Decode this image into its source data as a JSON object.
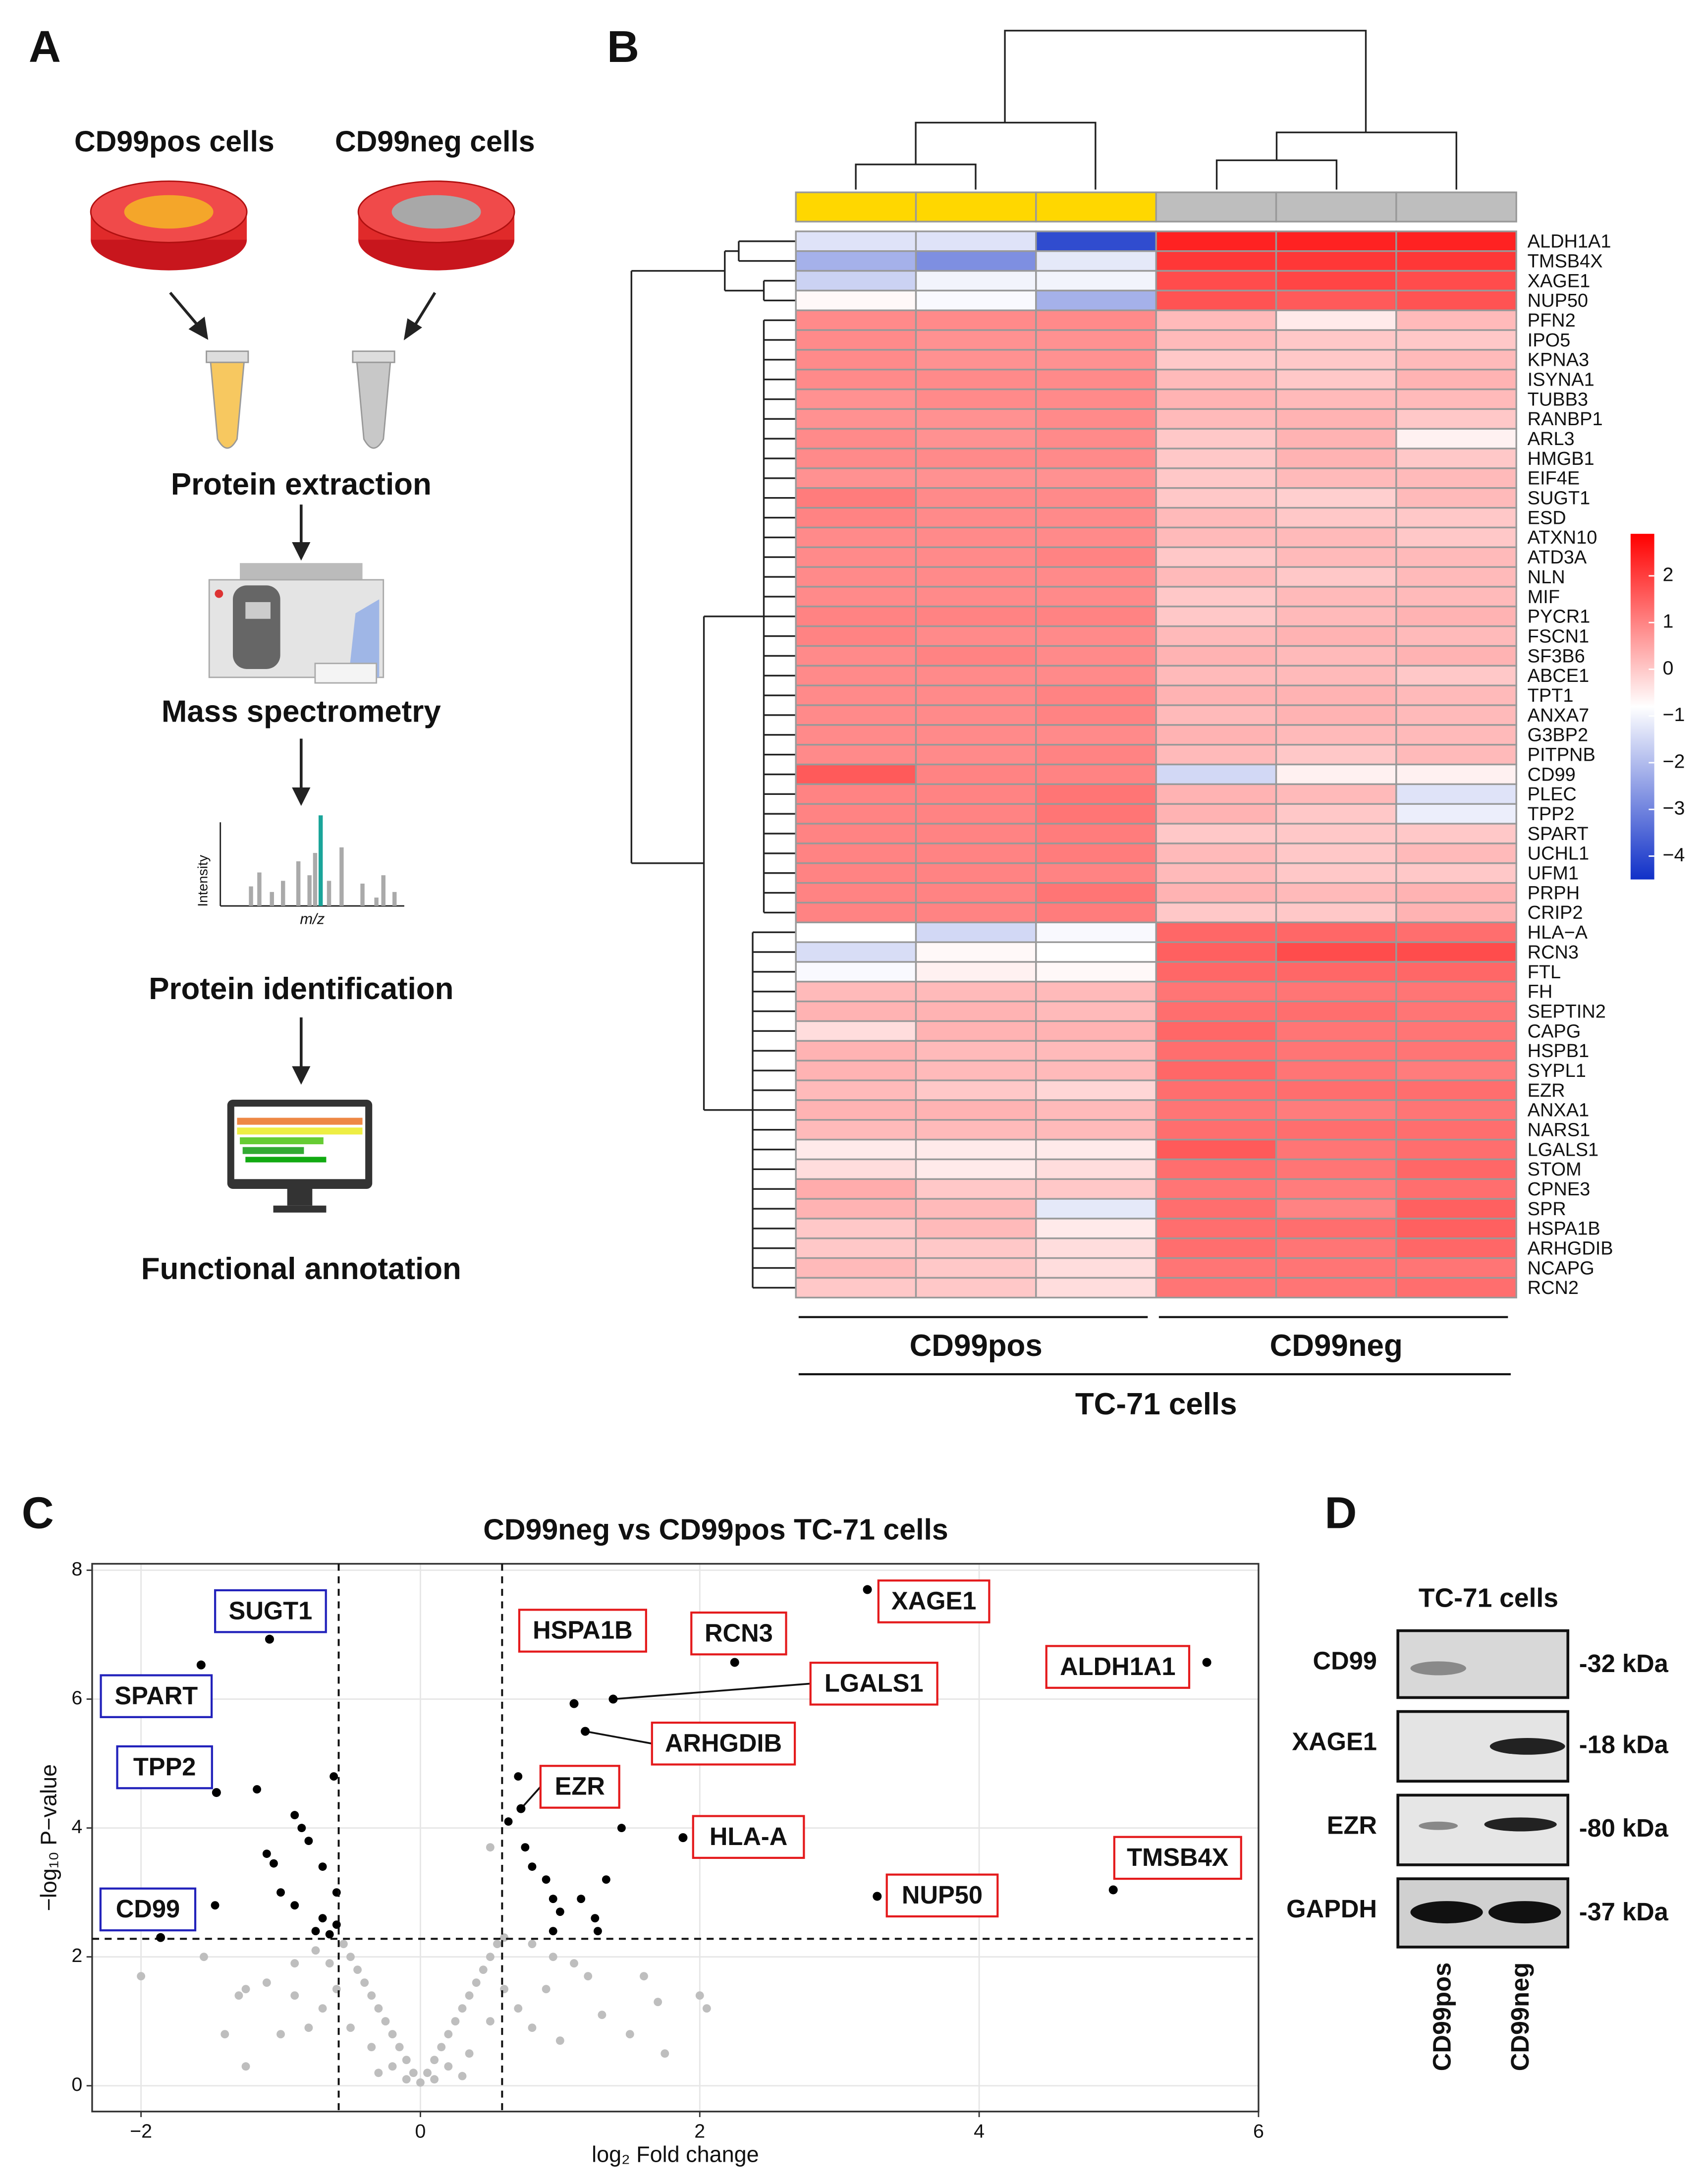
{
  "panel_labels": [
    "A",
    "B",
    "C",
    "D"
  ],
  "workflow": {
    "cells": [
      "CD99pos cells",
      "CD99neg cells"
    ],
    "steps": [
      "Protein extraction",
      "Mass spectrometry",
      "Protein identification",
      "Functional annotation"
    ],
    "spectrum_axes": {
      "y": "Intensity",
      "x": "m/z"
    }
  },
  "chart_data": [
    {
      "type": "heatmap",
      "groups": [
        {
          "name": "CD99pos",
          "color": "#FFD700"
        },
        {
          "name": "CD99neg",
          "color": "#BEBEBE"
        }
      ],
      "xlabel": "TC-71 cells",
      "zlim": [
        -4.5,
        2.9
      ],
      "zticks": [
        2,
        1,
        0,
        {
          "value": -1,
          "label": "−1"
        },
        {
          "value": -2,
          "label": "−2"
        },
        {
          "value": -3,
          "label": "−3"
        },
        {
          "value": -4,
          "label": "−4"
        }
      ],
      "colors": [
        "#1030C8",
        "#FFFFFF",
        "#FF0000"
      ],
      "rows": [
        {
          "name": "ALDH1A1",
          "values": [
            -1.3,
            -1.3,
            -4.0,
            2.4,
            2.4,
            2.4
          ]
        },
        {
          "name": "TMSB4X",
          "values": [
            -2.2,
            -2.8,
            -1.2,
            2.1,
            2.1,
            2.1
          ]
        },
        {
          "name": "XAGE1",
          "values": [
            -1.6,
            -1.0,
            -1.0,
            1.8,
            1.9,
            1.8
          ]
        },
        {
          "name": "NUP50",
          "values": [
            -0.7,
            -0.9,
            -2.2,
            1.7,
            1.6,
            1.7
          ]
        },
        {
          "name": "PFN2",
          "values": [
            0.9,
            0.9,
            0.9,
            0.2,
            -0.5,
            0.2
          ]
        },
        {
          "name": "IPO5",
          "values": [
            0.9,
            0.8,
            0.8,
            0.2,
            0.0,
            0.0
          ]
        },
        {
          "name": "KPNA3",
          "values": [
            0.9,
            0.8,
            0.8,
            0.0,
            0.0,
            0.2
          ]
        },
        {
          "name": "ISYNA1",
          "values": [
            0.9,
            0.9,
            0.9,
            0.2,
            0.0,
            0.3
          ]
        },
        {
          "name": "TUBB3",
          "values": [
            0.8,
            0.9,
            0.9,
            0.3,
            0.2,
            0.2
          ]
        },
        {
          "name": "RANBP1",
          "values": [
            0.8,
            0.8,
            0.9,
            0.2,
            0.3,
            0.0
          ]
        },
        {
          "name": "ARL3",
          "values": [
            0.9,
            0.8,
            0.9,
            0.0,
            0.3,
            -0.6
          ]
        },
        {
          "name": "HMGB1",
          "values": [
            0.9,
            0.9,
            0.9,
            0.0,
            0.3,
            0.0
          ]
        },
        {
          "name": "EIF4E",
          "values": [
            0.8,
            0.8,
            0.8,
            0.0,
            0.2,
            0.2
          ]
        },
        {
          "name": "SUGT1",
          "values": [
            1.1,
            0.9,
            0.9,
            0.0,
            -0.1,
            0.2
          ]
        },
        {
          "name": "ESD",
          "values": [
            1.0,
            0.9,
            0.9,
            0.2,
            0.0,
            0.0
          ]
        },
        {
          "name": "ATXN10",
          "values": [
            0.9,
            0.9,
            0.9,
            0.2,
            0.2,
            0.0
          ]
        },
        {
          "name": "ATD3A",
          "values": [
            0.9,
            0.9,
            1.0,
            0.0,
            0.2,
            0.2
          ]
        },
        {
          "name": "NLN",
          "values": [
            0.9,
            0.9,
            0.9,
            0.2,
            0.0,
            0.2
          ]
        },
        {
          "name": "MIF",
          "values": [
            0.9,
            0.9,
            0.9,
            0.0,
            0.2,
            0.2
          ]
        },
        {
          "name": "PYCR1",
          "values": [
            1.0,
            1.0,
            1.0,
            0.0,
            0.2,
            0.3
          ]
        },
        {
          "name": "FSCN1",
          "values": [
            1.0,
            0.9,
            0.9,
            0.2,
            0.3,
            0.2
          ]
        },
        {
          "name": "SF3B6",
          "values": [
            0.9,
            1.0,
            0.9,
            0.3,
            0.2,
            0.3
          ]
        },
        {
          "name": "ABCE1",
          "values": [
            0.9,
            0.9,
            0.9,
            0.2,
            0.2,
            0.0
          ]
        },
        {
          "name": "TPT1",
          "values": [
            0.9,
            0.9,
            1.0,
            0.3,
            0.3,
            0.2
          ]
        },
        {
          "name": "ANXA7",
          "values": [
            0.9,
            0.9,
            1.0,
            0.2,
            0.3,
            0.2
          ]
        },
        {
          "name": "G3BP2",
          "values": [
            0.9,
            0.9,
            0.9,
            0.3,
            0.2,
            0.2
          ]
        },
        {
          "name": "PITPNB",
          "values": [
            0.9,
            0.9,
            1.0,
            0.2,
            0.0,
            0.2
          ]
        },
        {
          "name": "CD99",
          "values": [
            1.6,
            1.0,
            1.0,
            -1.5,
            -0.6,
            -0.6
          ]
        },
        {
          "name": "PLEC",
          "values": [
            1.0,
            1.0,
            1.2,
            0.3,
            0.2,
            -1.3
          ]
        },
        {
          "name": "TPP2",
          "values": [
            1.0,
            1.0,
            1.2,
            0.3,
            0.0,
            -1.1
          ]
        },
        {
          "name": "SPART",
          "values": [
            1.0,
            1.0,
            1.1,
            0.0,
            0.0,
            0.0
          ]
        },
        {
          "name": "UCHL1",
          "values": [
            1.0,
            1.0,
            1.1,
            0.2,
            0.0,
            0.2
          ]
        },
        {
          "name": "UFM1",
          "values": [
            1.0,
            1.0,
            1.0,
            0.2,
            0.0,
            0.0
          ]
        },
        {
          "name": "PRPH",
          "values": [
            1.0,
            1.0,
            1.2,
            0.3,
            0.2,
            0.3
          ]
        },
        {
          "name": "CRIP2",
          "values": [
            1.0,
            1.0,
            1.1,
            0.0,
            0.0,
            0.3
          ]
        },
        {
          "name": "HLA−A",
          "values": [
            -0.8,
            -1.5,
            -0.9,
            1.4,
            1.4,
            1.3
          ]
        },
        {
          "name": "RCN3",
          "values": [
            -1.4,
            -0.7,
            -0.8,
            1.5,
            1.8,
            1.8
          ]
        },
        {
          "name": "FTL",
          "values": [
            -0.9,
            -0.6,
            -0.7,
            1.4,
            1.4,
            1.4
          ]
        },
        {
          "name": "FH",
          "values": [
            0.2,
            0.2,
            0.2,
            1.2,
            1.2,
            1.2
          ]
        },
        {
          "name": "SEPTIN2",
          "values": [
            0.3,
            0.3,
            0.2,
            1.3,
            1.3,
            1.2
          ]
        },
        {
          "name": "CAPG",
          "values": [
            -0.3,
            0.3,
            0.3,
            1.4,
            1.2,
            1.2
          ]
        },
        {
          "name": "HSPB1",
          "values": [
            0.3,
            0.2,
            0.2,
            1.3,
            1.2,
            1.2
          ]
        },
        {
          "name": "SYPL1",
          "values": [
            0.3,
            0.2,
            0.2,
            1.4,
            1.2,
            1.1
          ]
        },
        {
          "name": "EZR",
          "values": [
            0.2,
            0.0,
            -0.2,
            1.3,
            1.3,
            1.3
          ]
        },
        {
          "name": "ANXA1",
          "values": [
            0.3,
            0.3,
            0.2,
            1.2,
            1.1,
            1.2
          ]
        },
        {
          "name": "NARS1",
          "values": [
            0.2,
            0.2,
            0.2,
            1.3,
            1.3,
            1.3
          ]
        },
        {
          "name": "LGALS1",
          "values": [
            -0.5,
            -0.5,
            -0.5,
            1.6,
            1.2,
            1.3
          ]
        },
        {
          "name": "STOM",
          "values": [
            -0.3,
            -0.5,
            -0.3,
            1.3,
            1.2,
            1.4
          ]
        },
        {
          "name": "CPNE3",
          "values": [
            0.4,
            0.0,
            0.0,
            1.2,
            1.1,
            1.3
          ]
        },
        {
          "name": "SPR",
          "values": [
            0.3,
            0.2,
            -1.2,
            1.3,
            1.0,
            1.5
          ]
        },
        {
          "name": "HSPA1B",
          "values": [
            0.0,
            0.2,
            -0.5,
            1.3,
            1.3,
            1.5
          ]
        },
        {
          "name": "ARHGDIB",
          "values": [
            0.0,
            0.0,
            -0.3,
            1.3,
            1.2,
            1.4
          ]
        },
        {
          "name": "NCAPG",
          "values": [
            0.2,
            0.0,
            -0.3,
            1.2,
            1.2,
            1.2
          ]
        },
        {
          "name": "RCN2",
          "values": [
            0.0,
            0.0,
            -0.3,
            1.2,
            1.2,
            1.3
          ]
        }
      ]
    },
    {
      "type": "scatter",
      "title": "CD99neg vs CD99pos TC-71 cells",
      "x_label": "log₂ Fold change",
      "y_label": "−log₁₀ P−value",
      "xlim": [
        -2.35,
        6.0
      ],
      "ylim": [
        -0.4,
        8.1
      ],
      "xticks": [
        {
          "value": -2,
          "label": "−2"
        },
        0,
        2,
        4,
        6
      ],
      "yticks": [
        0,
        2,
        4,
        6,
        8
      ],
      "grid": true,
      "thresholds": {
        "x": [
          -0.585,
          0.585
        ],
        "y": 2.28
      },
      "series": [
        {
          "color": "#BEBEBE",
          "x": [
            0,
            0.05,
            -0.05,
            0.1,
            -0.1,
            0.15,
            -0.15,
            0.2,
            -0.2,
            0.25,
            -0.25,
            0.3,
            -0.3,
            0.35,
            -0.35,
            0.4,
            -0.4,
            0.45,
            -0.45,
            0.5,
            -0.5,
            0.55,
            -0.55,
            0.6,
            -0.6,
            0.7,
            -0.7,
            0.8,
            -0.8,
            0.9,
            -0.9,
            1.0,
            -1.0,
            1.1,
            -1.1,
            1.3,
            -1.3,
            1.5,
            -1.4,
            1.7,
            1.6,
            -1.55,
            -1.25,
            2.05,
            2.0,
            1.75,
            -1.25,
            -2.0,
            0.2,
            -0.2,
            0.35,
            -0.35,
            0.5,
            -0.5,
            0.6,
            0.5,
            0.95,
            -0.75,
            -0.65,
            0.3,
            -0.3,
            0.8,
            1.2,
            -0.9,
            0.1,
            -0.1
          ],
          "y": [
            0.05,
            0.2,
            0.2,
            0.4,
            0.4,
            0.6,
            0.6,
            0.8,
            0.8,
            1.0,
            1.0,
            1.2,
            1.2,
            1.4,
            1.4,
            1.6,
            1.6,
            1.8,
            1.8,
            2.0,
            2.0,
            2.2,
            2.2,
            1.5,
            1.5,
            1.2,
            1.2,
            0.9,
            0.9,
            1.5,
            1.4,
            0.7,
            0.8,
            1.9,
            1.6,
            1.1,
            1.4,
            0.8,
            0.8,
            1.3,
            1.7,
            2.0,
            1.5,
            1.2,
            1.4,
            0.5,
            0.3,
            1.7,
            0.3,
            0.3,
            0.5,
            0.6,
            1.0,
            0.9,
            2.3,
            3.7,
            2.0,
            2.1,
            1.9,
            0.15,
            0.2,
            2.2,
            1.7,
            1.9,
            0.1,
            0.1
          ]
        },
        {
          "color": "#000000",
          "x": [
            -0.62,
            -1.17,
            -0.9,
            -0.85,
            -0.8,
            -1.1,
            -1.05,
            -0.7,
            -1.0,
            -0.6,
            -0.9,
            -0.7,
            -0.75,
            -0.65,
            -1.47,
            -0.6,
            0.7,
            0.63,
            0.75,
            0.8,
            0.9,
            0.95,
            1.0,
            1.15,
            1.25,
            1.44,
            1.33,
            1.27,
            0.95
          ],
          "y": [
            4.8,
            4.6,
            4.2,
            4.0,
            3.8,
            3.6,
            3.45,
            3.4,
            3.0,
            3.0,
            2.8,
            2.6,
            2.4,
            2.35,
            2.8,
            2.5,
            4.8,
            4.1,
            3.7,
            3.4,
            3.2,
            2.9,
            2.7,
            2.9,
            2.6,
            4.0,
            3.2,
            2.4,
            2.4
          ]
        }
      ],
      "annotations": [
        {
          "text": "XAGE1",
          "x": 3.2,
          "y": 7.7,
          "box_color": "#E41A1C"
        },
        {
          "text": "ALDH1A1",
          "x": 5.63,
          "y": 6.57,
          "box_color": "#E41A1C"
        },
        {
          "text": "TMSB4X",
          "x": 4.96,
          "y": 3.04,
          "box_color": "#E41A1C"
        },
        {
          "text": "NUP50",
          "x": 3.27,
          "y": 2.94,
          "box_color": "#E41A1C"
        },
        {
          "text": "RCN3",
          "x": 2.25,
          "y": 6.57,
          "box_color": "#E41A1C"
        },
        {
          "text": "LGALS1",
          "x": 1.38,
          "y": 6.0,
          "box_color": "#E41A1C"
        },
        {
          "text": "HSPA1B",
          "x": 1.1,
          "y": 5.93,
          "box_color": "#E41A1C"
        },
        {
          "text": "ARHGDIB",
          "x": 1.18,
          "y": 5.5,
          "box_color": "#E41A1C"
        },
        {
          "text": "EZR",
          "x": 0.72,
          "y": 4.3,
          "box_color": "#E41A1C"
        },
        {
          "text": "HLA-A",
          "x": 1.88,
          "y": 3.85,
          "box_color": "#E41A1C"
        },
        {
          "text": "SUGT1",
          "x": -1.08,
          "y": 6.93,
          "box_color": "#2222BB"
        },
        {
          "text": "SPART",
          "x": -1.57,
          "y": 6.53,
          "box_color": "#2222BB"
        },
        {
          "text": "TPP2",
          "x": -1.46,
          "y": 4.55,
          "box_color": "#2222BB"
        },
        {
          "text": "CD99",
          "x": -1.86,
          "y": 2.3,
          "box_color": "#2222BB"
        }
      ]
    }
  ],
  "western_blot": {
    "title": "TC-71 cells",
    "rows": [
      {
        "protein": "CD99",
        "size": "-32 kDa"
      },
      {
        "protein": "XAGE1",
        "size": "-18 kDa"
      },
      {
        "protein": "EZR",
        "size": "-80 kDa"
      },
      {
        "protein": "GAPDH",
        "size": "-37 kDa"
      }
    ],
    "lanes": [
      "CD99pos",
      "CD99neg"
    ]
  }
}
